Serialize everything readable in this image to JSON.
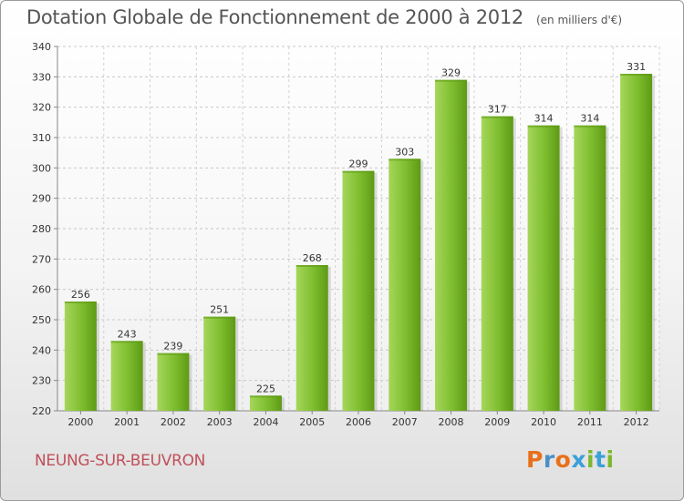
{
  "chart_data": {
    "type": "bar",
    "title": "Dotation Globale de Fonctionnement de 2000 à 2012",
    "subtitle": "(en milliers d'€)",
    "categories": [
      "2000",
      "2001",
      "2002",
      "2003",
      "2004",
      "2005",
      "2006",
      "2007",
      "2008",
      "2009",
      "2010",
      "2011",
      "2012"
    ],
    "values": [
      256,
      243,
      239,
      251,
      225,
      268,
      299,
      303,
      329,
      317,
      314,
      314,
      331
    ],
    "yticks": [
      220,
      230,
      240,
      250,
      260,
      270,
      280,
      290,
      300,
      310,
      320,
      330,
      340
    ],
    "ylim": [
      220,
      340
    ],
    "grid": true,
    "bar_color": "#7dbd2e",
    "bar_color_light": "#a6d65a",
    "bar_color_dark": "#5e9a16"
  },
  "footer": {
    "city": "NEUNG-SUR-BEUVRON",
    "logo": "Proxiti",
    "logo_colors": [
      "#e8701a",
      "#4a90c8",
      "#e8701a",
      "#3aa0d8",
      "#7cb82f",
      "#3aa0d8",
      "#7cb82f"
    ]
  }
}
